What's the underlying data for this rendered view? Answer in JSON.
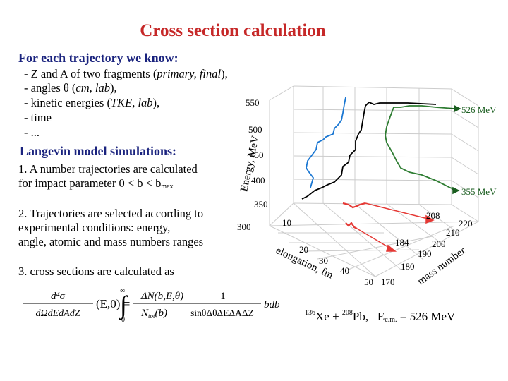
{
  "slide": {
    "title": "Cross section calculation",
    "section1": {
      "heading": "For each trajectory we know:",
      "items": [
        {
          "prefix": "- Z and A of two fragments (",
          "italic": "primary, final",
          "suffix": "),"
        },
        {
          "prefix": "- angles θ (",
          "italic": "cm, lab",
          "suffix": "),"
        },
        {
          "prefix": "- kinetic energies (",
          "italic": "TKE, lab",
          "suffix": "),"
        },
        {
          "prefix": "- time",
          "italic": "",
          "suffix": ""
        },
        {
          "prefix": "- ...",
          "italic": "",
          "suffix": ""
        }
      ]
    },
    "section2": {
      "heading": "Langevin model simulations:",
      "p1_line1": "1. A number trajectories are calculated",
      "p1_line2": "for impact parameter 0 < b < b",
      "p1_sub": "max",
      "p2_line1": "2. Trajectories are selected according to",
      "p2_line2": "experimental conditions: energy,",
      "p2_line3": "angle, atomic and mass numbers ranges",
      "p3_line1": "3. cross sections are calculated as"
    },
    "formula": {
      "lhs_num": "d⁴σ",
      "lhs_den": "dΩdEdAdZ",
      "lhs_args": "(E,0) =",
      "int_upper": "∞",
      "int_lower": "0",
      "mid_num": "ΔN(b,E,θ)",
      "mid_den": "N",
      "mid_den_sub": "tot",
      "mid_den_arg": "(b)",
      "right_num": "1",
      "right_den": "sinθΔθΔEΔAΔZ",
      "tail": "bdb"
    },
    "reaction": {
      "proj_mass": "136",
      "proj": "Xe + ",
      "targ_mass": "208",
      "targ": "Pb,",
      "energy_label": "E",
      "energy_sub": "c.m.",
      "energy_value": "= 526 MeV"
    }
  },
  "chart_data": {
    "type": "line",
    "dimensions": "3d",
    "title": "",
    "zlabel": "Energy, MeV",
    "xlabel": "elongation, fm",
    "ylabel": "mass number",
    "z_ticks": [
      "300",
      "350",
      "400",
      "450",
      "500",
      "550"
    ],
    "x_ticks": [
      "10",
      "20",
      "30",
      "40",
      "50"
    ],
    "y_ticks": [
      "170",
      "180",
      "190",
      "200",
      "210",
      "220"
    ],
    "annotations": [
      {
        "text": "526 MeV",
        "color": "#1b5e20"
      },
      {
        "text": "355 MeV",
        "color": "#1b5e20"
      },
      {
        "text": "208",
        "color": "#000000"
      },
      {
        "text": "184",
        "color": "#000000"
      }
    ],
    "series": [
      {
        "color": "#000000"
      },
      {
        "color": "#1976d2"
      },
      {
        "color": "#2e7d32"
      },
      {
        "color": "#e53935"
      }
    ]
  }
}
